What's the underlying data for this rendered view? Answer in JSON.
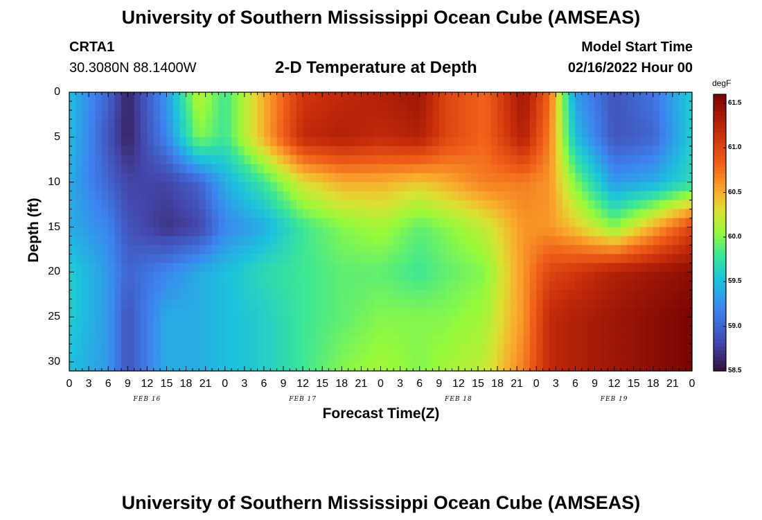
{
  "header": {
    "title": "University of Southern Mississippi Ocean Cube (AMSEAS)",
    "station": "CRTA1",
    "coords": "30.3080N  88.1400W",
    "subtitle": "2-D Temperature at Depth",
    "model_start_label": "Model Start Time",
    "model_start_value": "02/16/2022 Hour 00"
  },
  "footer": {
    "title": "University of Southern Mississippi Ocean Cube (AMSEAS)"
  },
  "chart_data": {
    "type": "heatmap",
    "xlabel": "Forecast Time(Z)",
    "ylabel": "Depth (ft)",
    "x_tick_labels": [
      "0",
      "3",
      "6",
      "9",
      "12",
      "15",
      "18",
      "21",
      "0",
      "3",
      "6",
      "9",
      "12",
      "15",
      "18",
      "21",
      "0",
      "3",
      "6",
      "9",
      "12",
      "15",
      "18",
      "21",
      "0",
      "3",
      "6",
      "9",
      "12",
      "15",
      "18",
      "21",
      "0"
    ],
    "date_labels": [
      {
        "label": "FEB 16",
        "hour": 12
      },
      {
        "label": "FEB 17",
        "hour": 36
      },
      {
        "label": "FEB 18",
        "hour": 60
      },
      {
        "label": "FEB 19",
        "hour": 84
      }
    ],
    "y_ticks": [
      0,
      5,
      10,
      15,
      20,
      25,
      30
    ],
    "xlim_hours": [
      0,
      96
    ],
    "ylim_ft": [
      0,
      31
    ],
    "colorbar": {
      "unit": "degF",
      "min": 58.5,
      "max": 61.6,
      "ticks": [
        "61.5",
        "61.0",
        "60.5",
        "60.0",
        "59.5",
        "59.0",
        "58.5"
      ]
    },
    "hours": [
      0,
      6,
      9,
      15,
      20,
      24,
      30,
      36,
      42,
      48,
      54,
      58,
      64,
      70,
      74,
      78,
      84,
      90,
      96
    ],
    "depths_ft": [
      0,
      5,
      10,
      15,
      20,
      25,
      31
    ],
    "values": [
      [
        59.5,
        59.0,
        58.6,
        59.3,
        60.2,
        59.8,
        60.5,
        61.1,
        61.2,
        61.3,
        61.4,
        61.0,
        60.8,
        61.4,
        60.8,
        59.3,
        58.9,
        59.1,
        59.6
      ],
      [
        59.5,
        58.9,
        58.6,
        59.2,
        60.0,
        59.8,
        60.5,
        61.2,
        61.3,
        61.2,
        61.3,
        61.0,
        60.8,
        61.3,
        60.7,
        59.5,
        58.9,
        59.0,
        59.6
      ],
      [
        59.4,
        59.0,
        58.8,
        58.8,
        59.0,
        59.4,
        59.8,
        60.3,
        60.5,
        60.5,
        60.4,
        60.5,
        60.7,
        60.7,
        60.6,
        60.0,
        59.3,
        59.4,
        59.7
      ],
      [
        59.4,
        59.2,
        58.9,
        58.7,
        58.8,
        59.2,
        59.4,
        59.8,
        60.0,
        60.1,
        59.9,
        60.0,
        60.2,
        60.6,
        60.6,
        60.4,
        60.0,
        60.5,
        61.0
      ],
      [
        59.6,
        59.3,
        59.0,
        59.2,
        59.4,
        59.5,
        59.7,
        59.8,
        59.9,
        59.9,
        59.8,
        59.9,
        60.0,
        60.6,
        61.0,
        61.1,
        61.3,
        61.4,
        61.5
      ],
      [
        59.6,
        59.3,
        58.9,
        59.4,
        59.4,
        59.5,
        59.6,
        59.8,
        59.9,
        60.0,
        60.0,
        60.0,
        60.1,
        60.6,
        61.2,
        61.3,
        61.4,
        61.5,
        61.6
      ],
      [
        59.5,
        59.3,
        58.9,
        59.4,
        59.4,
        59.5,
        59.6,
        59.8,
        60.0,
        60.1,
        60.0,
        60.1,
        60.2,
        60.7,
        61.2,
        61.3,
        61.4,
        61.5,
        61.6
      ]
    ]
  }
}
